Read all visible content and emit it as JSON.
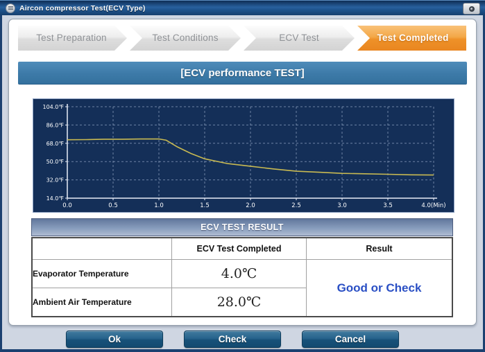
{
  "window": {
    "title": "Aircon compressor Test(ECV Type)"
  },
  "wizard": {
    "steps": [
      {
        "label": "Test Preparation",
        "active": false
      },
      {
        "label": "Test Conditions",
        "active": false
      },
      {
        "label": "ECV Test",
        "active": false
      },
      {
        "label": "Test Completed",
        "active": true
      }
    ]
  },
  "header": {
    "title": "[ECV performance TEST]"
  },
  "chart_data": {
    "type": "line",
    "title": "",
    "xlabel": "Min",
    "ylabel": "°F",
    "xlim": [
      0,
      4
    ],
    "ylim": [
      14,
      104
    ],
    "grid": true,
    "legend": "none",
    "plot_bg": "#142f58",
    "grid_color": "#9fb1cf",
    "axis_color": "#e9eef7",
    "x_ticks": [
      0,
      0.5,
      1,
      1.5,
      2,
      2.5,
      3,
      3.5,
      4
    ],
    "x_tick_labels": [
      "0.0",
      "0.5",
      "1.0",
      "1.5",
      "2.0",
      "2.5",
      "3.0",
      "3.5",
      "4.0(Min)"
    ],
    "y_ticks": [
      14,
      32,
      50,
      68,
      86,
      104
    ],
    "y_tick_labels": [
      "14.0℉",
      "32.0℉",
      "50.0℉",
      "68.0℉",
      "86.0℉",
      "104.0℉"
    ],
    "series": [
      {
        "name": "Evaporator Temperature",
        "color": "#c9ba52",
        "x": [
          0,
          0.2,
          0.4,
          0.6,
          0.8,
          1.0,
          1.08,
          1.2,
          1.35,
          1.5,
          1.75,
          2.0,
          2.25,
          2.5,
          2.75,
          3.0,
          3.25,
          3.5,
          3.75,
          4.0
        ],
        "y": [
          71.5,
          71.6,
          72.0,
          72.0,
          72.2,
          72.3,
          71.0,
          64.5,
          58.0,
          52.7,
          48.0,
          45.4,
          42.8,
          40.5,
          39.5,
          38.4,
          38.0,
          37.5,
          37.0,
          36.8
        ]
      }
    ]
  },
  "result_section": {
    "title": "ECV TEST RESULT",
    "columns": [
      "",
      "ECV Test Completed",
      "Result"
    ],
    "rows": [
      {
        "label": "Evaporator Temperature",
        "value": "4.0℃"
      },
      {
        "label": "Ambient Air Temperature",
        "value": "28.0℃"
      }
    ],
    "result": "Good or Check",
    "result_color": "#2a4fc4"
  },
  "footer": {
    "ok_label": "Ok",
    "check_label": "Check",
    "cancel_label": "Cancel"
  }
}
